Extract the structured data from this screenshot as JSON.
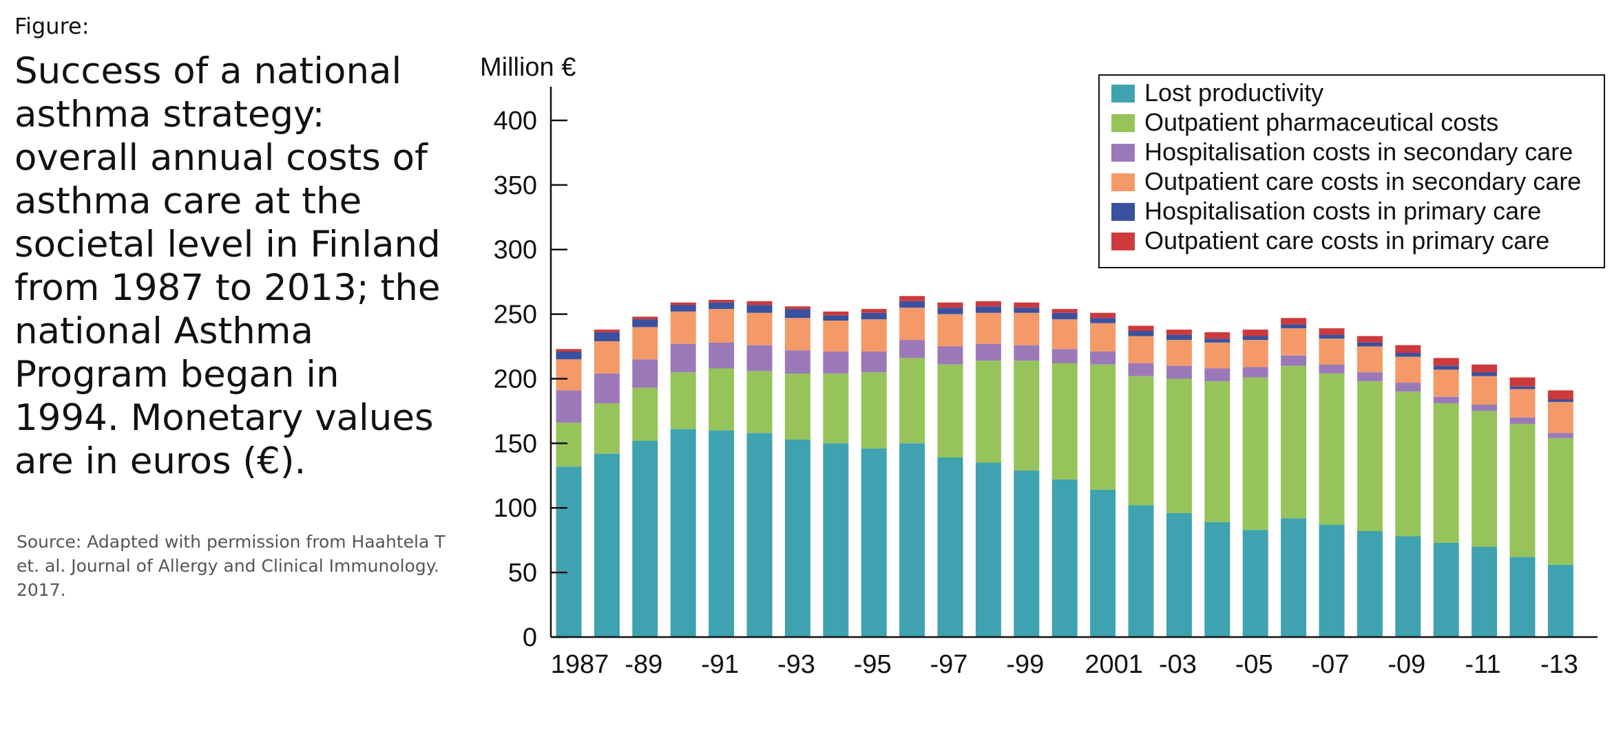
{
  "figure": {
    "label": "Figure:",
    "title": "Success of a national asthma strategy: overall annual costs of asthma care at the societal level in Finland from 1987 to 2013; the national Asthma Program began in 1994. Monetary values are in euros (€).",
    "source": "Source: Adapted with permission from Haahtela T et. al. Journal of Allergy and Clinical Immunology. 2017."
  },
  "chart_data": {
    "type": "bar",
    "stacked": true,
    "ylabel": "Million €",
    "ylim": [
      0,
      425
    ],
    "yticks": [
      0,
      50,
      100,
      150,
      200,
      250,
      300,
      350,
      400
    ],
    "categories": [
      "1987",
      "1988",
      "1989",
      "1990",
      "1991",
      "1992",
      "1993",
      "1994",
      "1995",
      "1996",
      "1997",
      "1998",
      "1999",
      "2000",
      "2001",
      "2002",
      "2003",
      "2004",
      "2005",
      "2006",
      "2007",
      "2008",
      "2009",
      "2010",
      "2011",
      "2012",
      "2013"
    ],
    "tick_labels": [
      "1987",
      "",
      "-89",
      "",
      "-91",
      "",
      "-93",
      "",
      "-95",
      "",
      "-97",
      "",
      "-99",
      "",
      "2001",
      "",
      "-03",
      "",
      "-05",
      "",
      "-07",
      "",
      "-09",
      "",
      "-11",
      "",
      "-13"
    ],
    "legend_position": "top-right",
    "grid": false,
    "series": [
      {
        "name": "Lost productivity",
        "color": "#3fa2b0",
        "values": [
          132,
          142,
          152,
          161,
          160,
          158,
          153,
          150,
          146,
          150,
          139,
          135,
          129,
          122,
          114,
          102,
          96,
          89,
          83,
          92,
          87,
          82,
          78,
          73,
          70,
          62,
          56
        ]
      },
      {
        "name": "Outpatient pharmaceutical costs",
        "color": "#96c45a",
        "values": [
          34,
          39,
          41,
          44,
          48,
          48,
          51,
          54,
          59,
          66,
          72,
          79,
          85,
          90,
          97,
          100,
          104,
          109,
          118,
          118,
          117,
          116,
          112,
          108,
          105,
          103,
          98
        ]
      },
      {
        "name": "Hospitalisation costs in secondary care",
        "color": "#9b79b9",
        "values": [
          25,
          23,
          22,
          22,
          20,
          20,
          18,
          17,
          16,
          14,
          14,
          13,
          12,
          11,
          10,
          10,
          10,
          10,
          8,
          8,
          7,
          7,
          7,
          5,
          5,
          5,
          4
        ]
      },
      {
        "name": "Outpatient care costs in secondary care",
        "color": "#f39a68",
        "values": [
          24,
          25,
          25,
          25,
          26,
          25,
          25,
          24,
          25,
          25,
          25,
          24,
          25,
          23,
          22,
          21,
          20,
          20,
          21,
          21,
          20,
          20,
          20,
          21,
          22,
          22,
          24
        ]
      },
      {
        "name": "Hospitalisation costs in primary care",
        "color": "#3a51a0",
        "values": [
          6,
          7,
          6,
          5,
          5,
          6,
          7,
          4,
          5,
          5,
          5,
          5,
          4,
          5,
          4,
          4,
          4,
          3,
          3,
          3,
          3,
          3,
          3,
          3,
          3,
          2,
          2
        ]
      },
      {
        "name": "Outpatient care costs in primary care",
        "color": "#cd3a3c",
        "values": [
          2,
          2,
          2,
          2,
          2,
          3,
          2,
          3,
          3,
          4,
          4,
          4,
          4,
          3,
          4,
          4,
          4,
          5,
          5,
          5,
          5,
          5,
          6,
          6,
          6,
          7,
          7
        ]
      }
    ]
  }
}
